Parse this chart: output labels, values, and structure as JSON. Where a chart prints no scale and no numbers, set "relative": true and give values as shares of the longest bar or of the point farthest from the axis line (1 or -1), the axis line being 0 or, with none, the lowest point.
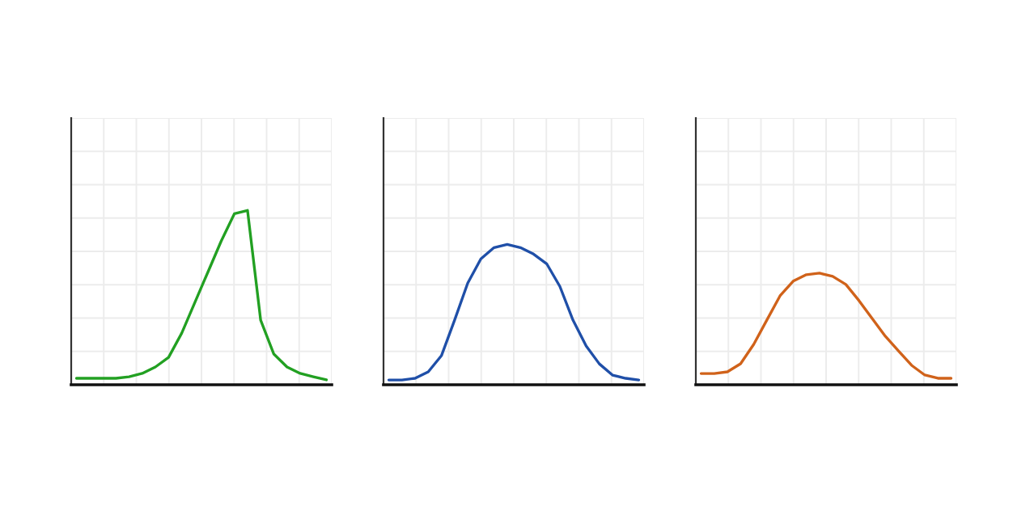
{
  "chart_data": [
    {
      "type": "line",
      "relative": true,
      "grid": true,
      "categories": [
        null,
        null,
        null,
        null,
        null,
        null,
        null,
        null,
        null,
        null,
        null,
        null,
        null,
        null,
        null,
        null,
        null,
        null,
        null,
        null
      ],
      "series": [
        {
          "color": "#22a022",
          "values": [
            0.037,
            0.037,
            0.037,
            0.037,
            0.046,
            0.065,
            0.102,
            0.157,
            0.296,
            0.472,
            0.648,
            0.824,
            0.981,
            1,
            0.37,
            0.176,
            0.102,
            0.065,
            0.046,
            0.028
          ]
        }
      ]
    },
    {
      "type": "line",
      "relative": true,
      "grid": true,
      "categories": [
        null,
        null,
        null,
        null,
        null,
        null,
        null,
        null,
        null,
        null,
        null,
        null,
        null,
        null,
        null,
        null,
        null,
        null,
        null,
        null
      ],
      "series": [
        {
          "color": "#1f4fa8",
          "values": [
            0.034,
            0.034,
            0.046,
            0.092,
            0.207,
            0.46,
            0.724,
            0.897,
            0.977,
            1,
            0.977,
            0.931,
            0.862,
            0.701,
            0.46,
            0.276,
            0.149,
            0.069,
            0.046,
            0.034
          ]
        }
      ]
    },
    {
      "type": "line",
      "relative": true,
      "grid": true,
      "categories": [
        null,
        null,
        null,
        null,
        null,
        null,
        null,
        null,
        null,
        null,
        null,
        null,
        null,
        null,
        null,
        null,
        null,
        null,
        null,
        null
      ],
      "series": [
        {
          "color": "#d0621a",
          "values": [
            0.101,
            0.101,
            0.116,
            0.188,
            0.362,
            0.58,
            0.797,
            0.928,
            0.986,
            1,
            0.971,
            0.899,
            0.754,
            0.594,
            0.435,
            0.304,
            0.174,
            0.087,
            0.058,
            0.058
          ]
        }
      ]
    }
  ]
}
